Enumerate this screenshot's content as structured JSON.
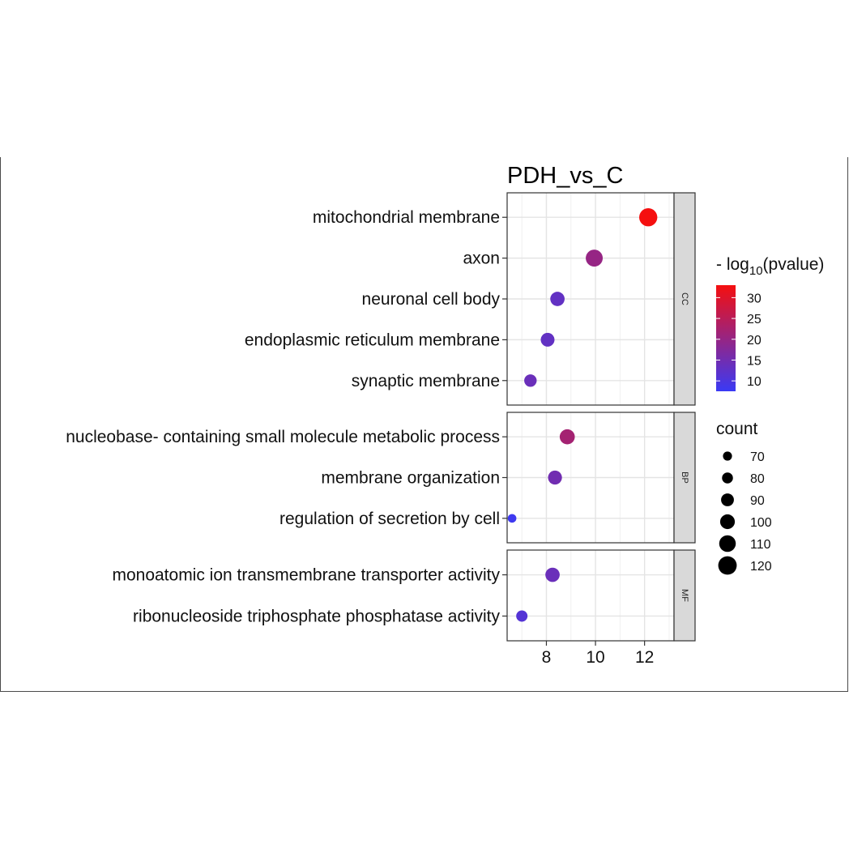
{
  "chart_data": {
    "type": "scatter",
    "title": "PDH_vs_C",
    "xlabel": "",
    "ylabel": "",
    "xlim": [
      6.4,
      13.2
    ],
    "x_ticks": [
      8,
      10,
      12
    ],
    "x_tick_labels": [
      "8",
      "10",
      "12"
    ],
    "grid": true,
    "legend_position": "right",
    "color_legend": {
      "title_prefix": "- log",
      "title_subscript": "10",
      "title_suffix": "(pvalue)",
      "min": 7.5,
      "max": 33,
      "low_color": "#3a3af5",
      "high_color": "#f50f0f",
      "ticks": [
        30,
        25,
        20,
        15,
        10
      ],
      "tick_labels": [
        "30",
        "25",
        "20",
        "15",
        "10"
      ]
    },
    "size_legend": {
      "title": "count",
      "min": 65,
      "max": 125,
      "values": [
        70,
        80,
        90,
        100,
        110,
        120
      ],
      "labels": [
        "70",
        "80",
        "90",
        "100",
        "110",
        "120"
      ]
    },
    "facets": [
      {
        "label": "CC",
        "terms": [
          {
            "term": "mitochondrial membrane",
            "x": 12.15,
            "pvalue": 33,
            "count": 118
          },
          {
            "term": "axon",
            "x": 9.95,
            "pvalue": 20,
            "count": 112
          },
          {
            "term": "neuronal cell body",
            "x": 8.45,
            "pvalue": 13,
            "count": 98
          },
          {
            "term": "endoplasmic reticulum membrane",
            "x": 8.05,
            "pvalue": 13,
            "count": 95
          },
          {
            "term": "synaptic membrane",
            "x": 7.35,
            "pvalue": 14,
            "count": 88
          }
        ]
      },
      {
        "label": "BP",
        "terms": [
          {
            "term": "nucleobase- containing small molecule metabolic process",
            "x": 8.85,
            "pvalue": 22,
            "count": 102
          },
          {
            "term": "membrane organization",
            "x": 8.35,
            "pvalue": 15,
            "count": 96
          },
          {
            "term": "regulation of secretion by cell",
            "x": 6.6,
            "pvalue": 8,
            "count": 68
          }
        ]
      },
      {
        "label": "MF",
        "terms": [
          {
            "term": "monoatomic ion transmembrane transporter activity",
            "x": 8.25,
            "pvalue": 14,
            "count": 98
          },
          {
            "term": "ribonucleoside triphosphate phosphatase activity",
            "x": 7.0,
            "pvalue": 11,
            "count": 82
          }
        ]
      }
    ]
  }
}
